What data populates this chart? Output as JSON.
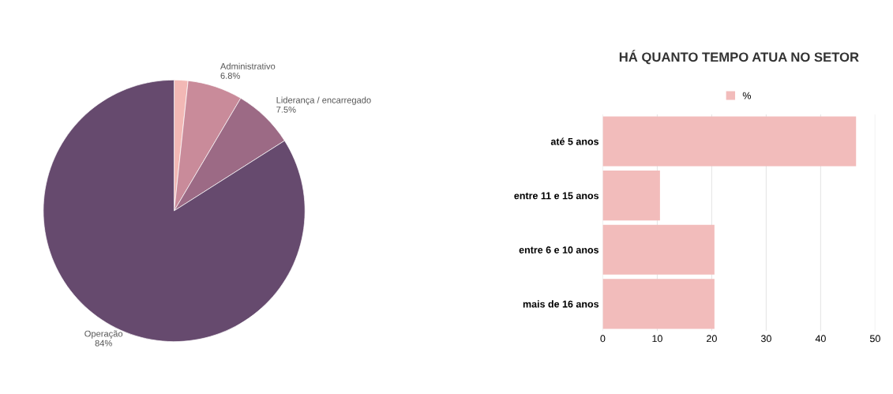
{
  "chart_data": [
    {
      "type": "pie",
      "categories": [
        null,
        "Administrativo",
        "Liderança / encarregado",
        "Operação"
      ],
      "values": [
        1.7,
        6.8,
        7.5,
        84
      ],
      "value_labels": [
        null,
        "6.8%",
        "7.5%",
        "84%"
      ],
      "colors": [
        "#f2b8b5",
        "#c98b9a",
        "#9c6a85",
        "#664a6e"
      ]
    },
    {
      "type": "bar",
      "orientation": "horizontal",
      "title": "HÁ QUANTO TEMPO ATUA NO SETOR",
      "categories": [
        "até 5 anos",
        "entre 11 e 15 anos",
        "entre 6 e 10 anos",
        "mais de 16 anos"
      ],
      "series": [
        {
          "name": "%",
          "color": "#f2bcbb",
          "values": [
            46.5,
            10.5,
            20.5,
            20.5
          ]
        }
      ],
      "xlim": [
        0,
        50
      ],
      "xticks": [
        0,
        10,
        20,
        30,
        40,
        50
      ],
      "grid": "x",
      "legend": "top"
    }
  ]
}
